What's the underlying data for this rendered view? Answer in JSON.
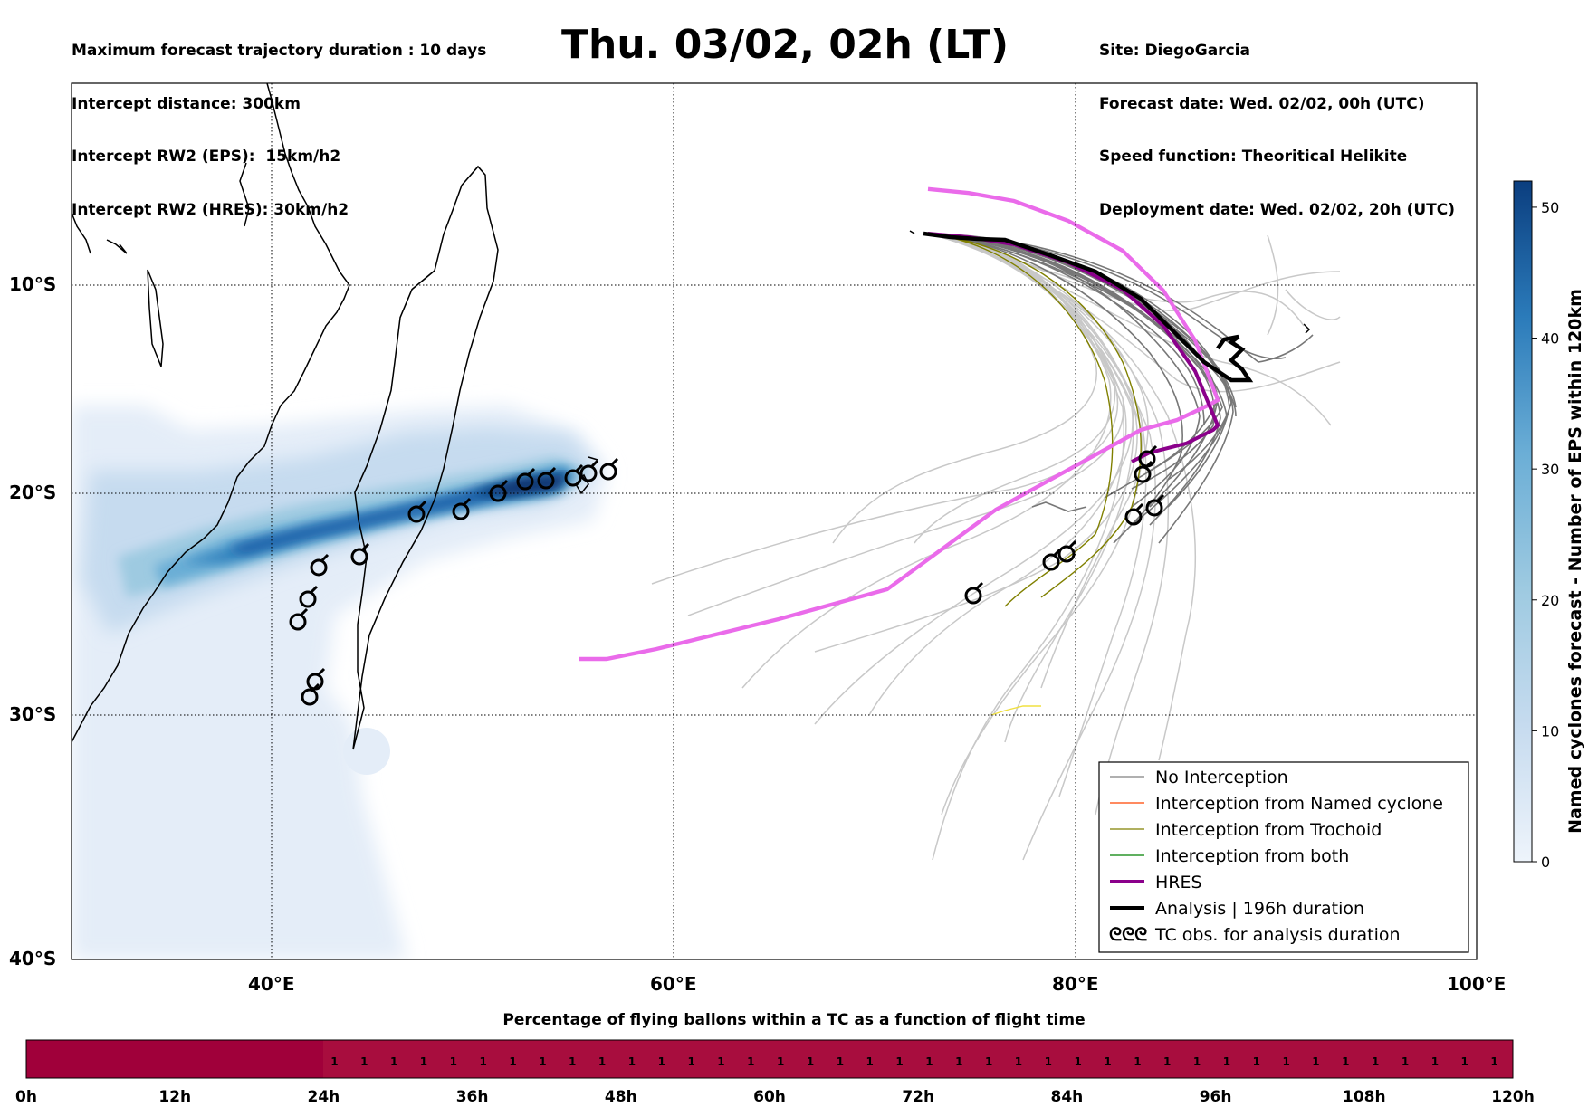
{
  "header": {
    "left_lines": [
      "Maximum forecast trajectory duration : 10 days",
      "Intercept distance: 300km",
      "Intercept RW2 (EPS):  15km/h2",
      "Intercept RW2 (HRES): 30km/h2"
    ],
    "title": "Thu. 03/02, 02h (LT)",
    "right_lines": [
      "Site: DiegoGarcia",
      "Forecast date: Wed. 02/02, 00h (UTC)",
      "Speed function: Theoritical Helikite",
      "Deployment date: Wed. 02/02, 20h (UTC)"
    ]
  },
  "map": {
    "lat_labels": [
      "10°S",
      "20°S",
      "30°S",
      "40°S"
    ],
    "lon_labels": [
      "40°E",
      "60°E",
      "80°E",
      "100°E"
    ],
    "extent": {
      "lon": [
        30,
        100
      ],
      "lat": [
        -40,
        0
      ]
    },
    "legend": [
      {
        "label": "No Interception",
        "color": "#808080",
        "style": "thin"
      },
      {
        "label": "Interception from Named cyclone",
        "color": "#ff4500",
        "style": "thin"
      },
      {
        "label": "Interception from Trochoid",
        "color": "#808000",
        "style": "thin"
      },
      {
        "label": "Interception from both",
        "color": "#008000",
        "style": "thin"
      },
      {
        "label": "HRES",
        "color": "#8b008b",
        "style": "thick"
      },
      {
        "label": "Analysis | 196h duration",
        "color": "#000000",
        "style": "thick"
      },
      {
        "label": "TC obs. for analysis duration",
        "color": "#000000",
        "style": "symbol",
        "symbol": "ᘓᘓᘓ"
      }
    ],
    "tc_symbol_icon": "cyclone-symbol-icon"
  },
  "colorbar": {
    "label": "Named cyclones forecast - Number of EPS within 120km",
    "ticks": [
      "0",
      "10",
      "20",
      "30",
      "40",
      "50"
    ],
    "max": 52,
    "colors": [
      "#e5eef8",
      "#c6dbef",
      "#9ecae1",
      "#6baed6",
      "#3182bd",
      "#08306b"
    ]
  },
  "bottom_bar": {
    "title": "Percentage of flying ballons within a TC as a function of flight time",
    "hour_labels": [
      "0h",
      "12h",
      "24h",
      "36h",
      "48h",
      "60h",
      "72h",
      "84h",
      "96h",
      "108h",
      "120h"
    ],
    "cell_values": [
      "1",
      "1",
      "1",
      "1",
      "1",
      "1",
      "1",
      "1",
      "1",
      "1",
      "1",
      "1",
      "1",
      "1",
      "1",
      "1",
      "1",
      "1",
      "1",
      "1",
      "1",
      "1",
      "1",
      "1",
      "1",
      "1",
      "1",
      "1",
      "1",
      "1",
      "1",
      "1",
      "1",
      "1",
      "1",
      "1",
      "1",
      "1",
      "1",
      "1"
    ],
    "color_zero": "#a0003a",
    "color_one": "#a80d3e"
  }
}
